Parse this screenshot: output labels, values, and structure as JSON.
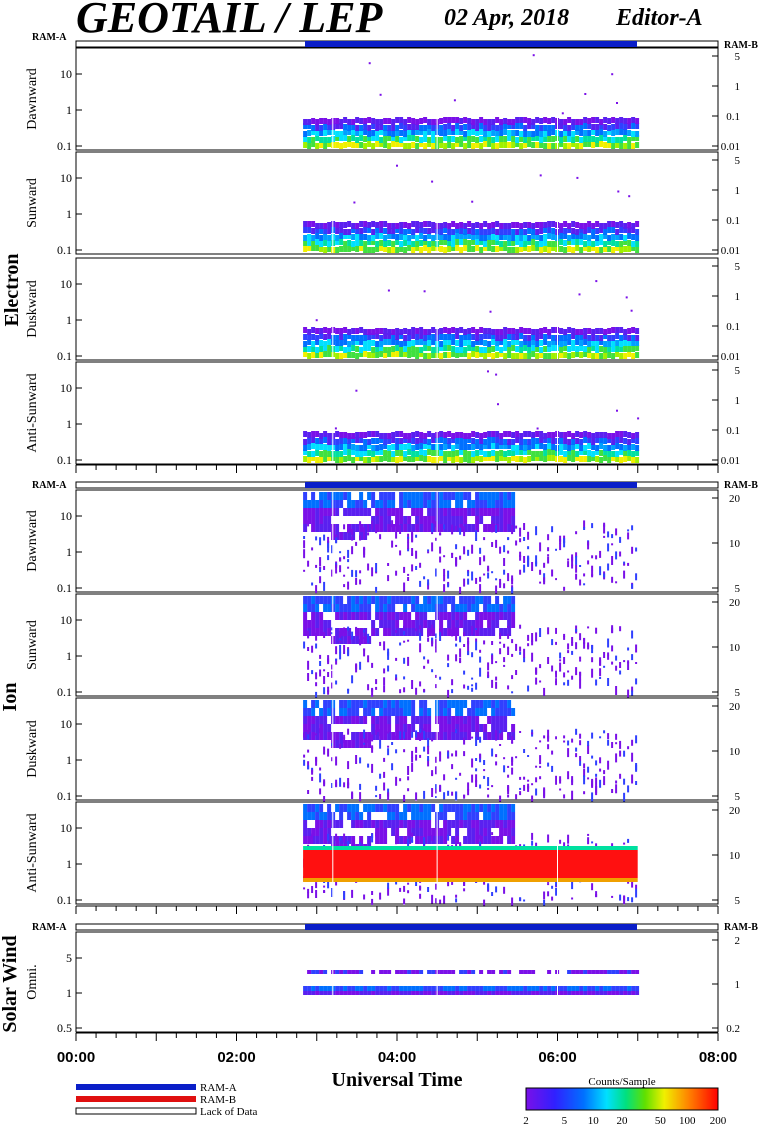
{
  "header": {
    "instrument": "GEOTAIL / LEP",
    "date": "02 Apr, 2018",
    "editor": "Editor-A"
  },
  "labels": {
    "ram_a": "RAM-A",
    "ram_b": "RAM-B",
    "x_axis_title": "Universal Time"
  },
  "legend": {
    "ram_a": "RAM-A",
    "ram_b": "RAM-B",
    "lack": "Lack of Data"
  },
  "colorbar": {
    "title": "Counts/Sample",
    "ticks": [
      "2",
      "5",
      "10",
      "20",
      "50",
      "100",
      "200"
    ]
  },
  "colors": {
    "ram_a": "#0a1ec8",
    "ram_b": "#e01010",
    "spectrum_low": "#7a1ee6",
    "spectrum_high": "#ff1010"
  },
  "chart_data": {
    "type": "heatmap",
    "x_range_hours": [
      0,
      8
    ],
    "data_coverage_hours": [
      2.83,
      7.0
    ],
    "x_ticks": [
      "00:00",
      "02:00",
      "04:00",
      "06:00",
      "08:00"
    ],
    "groups": [
      {
        "name": "Electron",
        "panels": [
          {
            "name": "Dawnward",
            "left_ticks": [
              "10",
              "1",
              "0.1"
            ],
            "right_ticks": [
              "5",
              "1",
              "0.1",
              "0.01"
            ]
          },
          {
            "name": "Sunward",
            "left_ticks": [
              "10",
              "1",
              "0.1"
            ],
            "right_ticks": [
              "5",
              "1",
              "0.1",
              "0.01"
            ]
          },
          {
            "name": "Duskward",
            "left_ticks": [
              "10",
              "1",
              "0.1"
            ],
            "right_ticks": [
              "5",
              "1",
              "0.1",
              "0.01"
            ]
          },
          {
            "name": "Anti-Sunward",
            "left_ticks": [
              "10",
              "1",
              "0.1"
            ],
            "right_ticks": [
              "5",
              "1",
              "0.1",
              "0.01"
            ]
          }
        ]
      },
      {
        "name": "Ion",
        "panels": [
          {
            "name": "Dawnward",
            "left_ticks": [
              "10",
              "1",
              "0.1"
            ],
            "right_ticks": [
              "20",
              "10",
              "5"
            ]
          },
          {
            "name": "Sunward",
            "left_ticks": [
              "10",
              "1",
              "0.1"
            ],
            "right_ticks": [
              "20",
              "10",
              "5"
            ]
          },
          {
            "name": "Duskward",
            "left_ticks": [
              "10",
              "1",
              "0.1"
            ],
            "right_ticks": [
              "20",
              "10",
              "5"
            ]
          },
          {
            "name": "Anti-Sunward",
            "left_ticks": [
              "10",
              "1",
              "0.1"
            ],
            "right_ticks": [
              "20",
              "10",
              "5"
            ]
          }
        ]
      },
      {
        "name": "Solar Wind",
        "panels": [
          {
            "name": "Omni.",
            "left_ticks": [
              "5",
              "1",
              "0.5"
            ],
            "right_ticks": [
              "2",
              "1",
              "0.2"
            ]
          }
        ]
      }
    ]
  }
}
